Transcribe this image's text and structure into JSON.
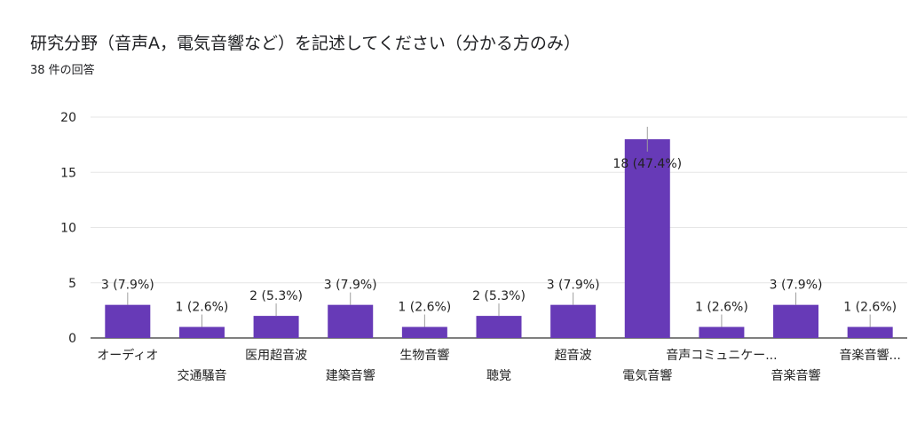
{
  "question": {
    "title": "研究分野（音声A，電気音響など）を記述してください（分かる方のみ）",
    "response_count": "38 件の回答"
  },
  "chart_data": {
    "type": "bar",
    "title": "研究分野（音声A，電気音響など）を記述してください（分かる方のみ）",
    "xlabel": "",
    "ylabel": "",
    "ylim": [
      0,
      20
    ],
    "yticks": [
      0,
      5,
      10,
      15,
      20
    ],
    "grid": true,
    "bar_color": "#673ab7",
    "categories": [
      "オーディオ",
      "交通騒音",
      "医用超音波",
      "建築音響",
      "生物音響",
      "聴覚",
      "超音波",
      "電気音響",
      "音声コミュニケー...",
      "音楽音響",
      "音楽音響..."
    ],
    "values": [
      3,
      1,
      2,
      3,
      1,
      2,
      3,
      18,
      1,
      3,
      1
    ],
    "labels": [
      "3 (7.9%)",
      "1 (2.6%)",
      "2 (5.3%)",
      "3 (7.9%)",
      "1 (2.6%)",
      "2 (5.3%)",
      "3 (7.9%)",
      "18 (47.4%)",
      "1 (2.6%)",
      "3 (7.9%)",
      "1 (2.6%)"
    ]
  }
}
